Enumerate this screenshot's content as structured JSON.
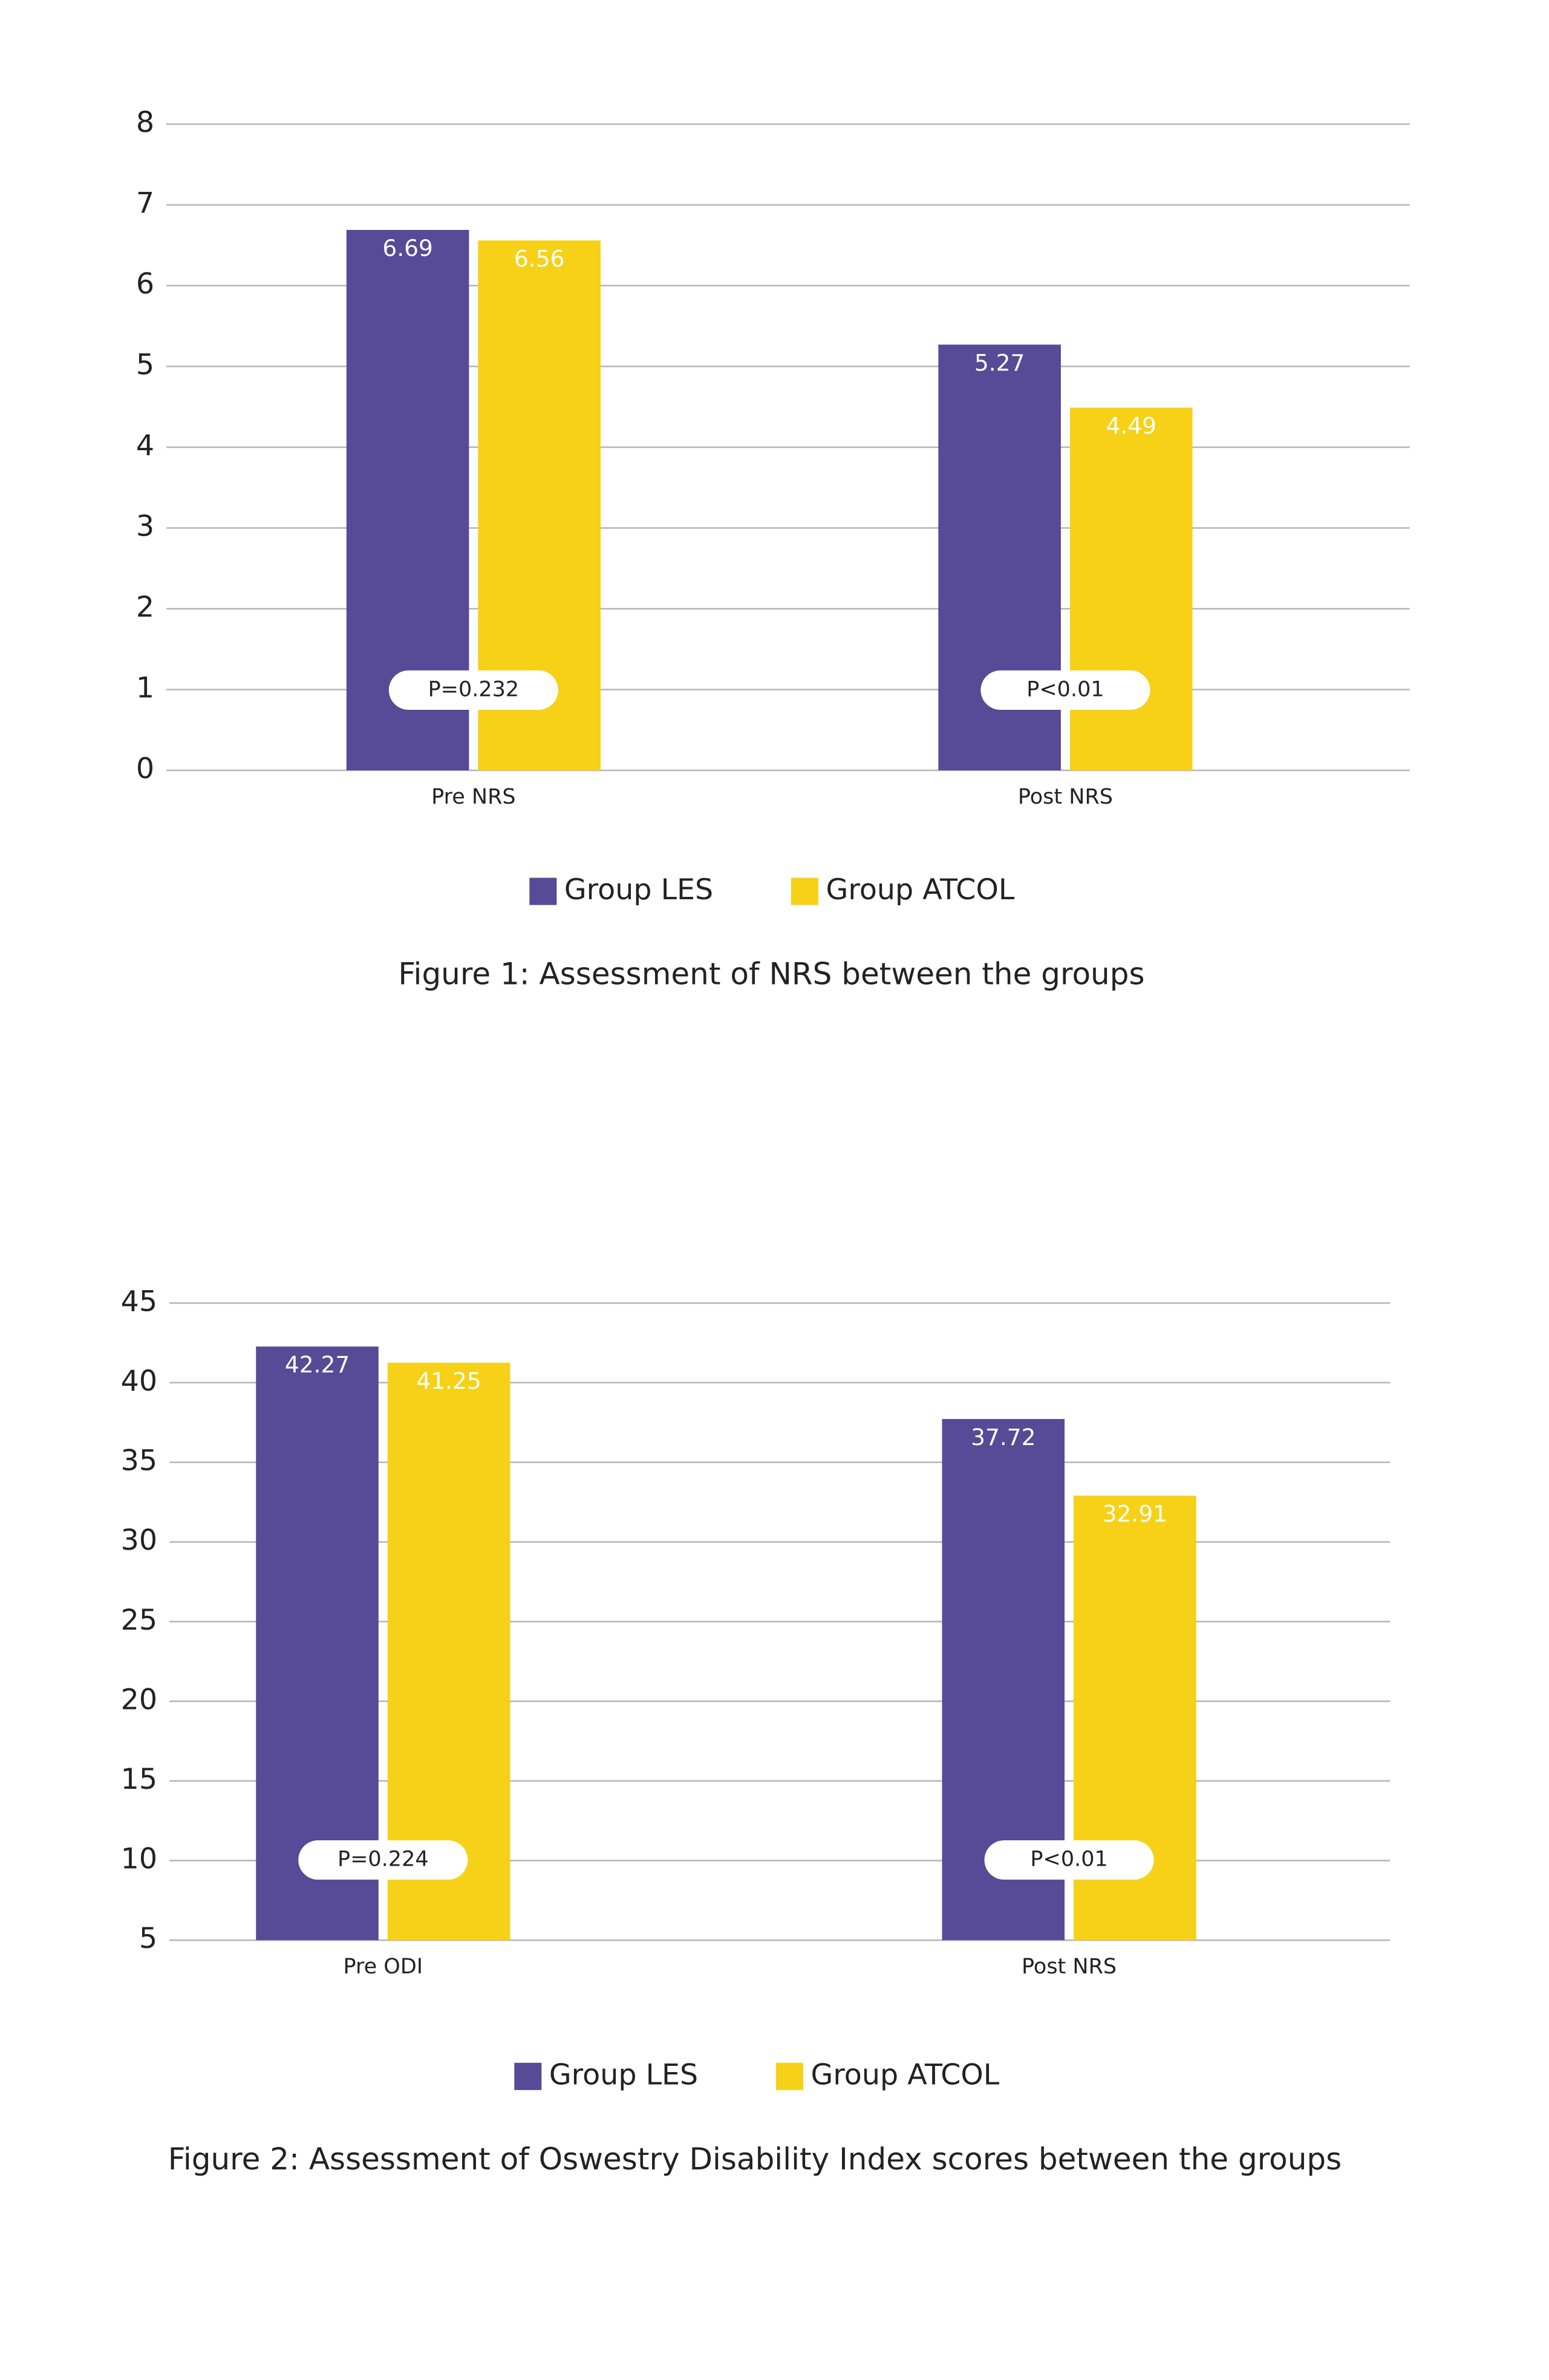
{
  "chart_data": [
    {
      "type": "bar",
      "title": "Figure 1: Assessment of NRS between the groups",
      "categories": [
        "Pre NRS",
        "Post NRS"
      ],
      "series": [
        {
          "name": "Group LES",
          "color": "#574a97",
          "values": [
            6.69,
            5.27
          ]
        },
        {
          "name": "Group ATCOL",
          "color": "#f6d118",
          "values": [
            6.56,
            4.49
          ]
        }
      ],
      "annotations": [
        "P=0.232",
        "P<0.01"
      ],
      "ylim": [
        0,
        8
      ],
      "yticks": [
        0,
        1,
        2,
        3,
        4,
        5,
        6,
        7,
        8
      ],
      "grid": true
    },
    {
      "type": "bar",
      "title": "Figure 2: Assessment of Oswestry Disability Index scores between the groups",
      "categories": [
        "Pre ODI",
        "Post NRS"
      ],
      "series": [
        {
          "name": "Group LES",
          "color": "#574a97",
          "values": [
            42.27,
            37.72
          ]
        },
        {
          "name": "Group ATCOL",
          "color": "#f6d118",
          "values": [
            41.25,
            32.91
          ]
        }
      ],
      "annotations": [
        "P=0.224",
        "P<0.01"
      ],
      "ylim": [
        5,
        45
      ],
      "yticks": [
        5,
        10,
        15,
        20,
        25,
        30,
        35,
        40,
        45
      ],
      "grid": true
    }
  ]
}
